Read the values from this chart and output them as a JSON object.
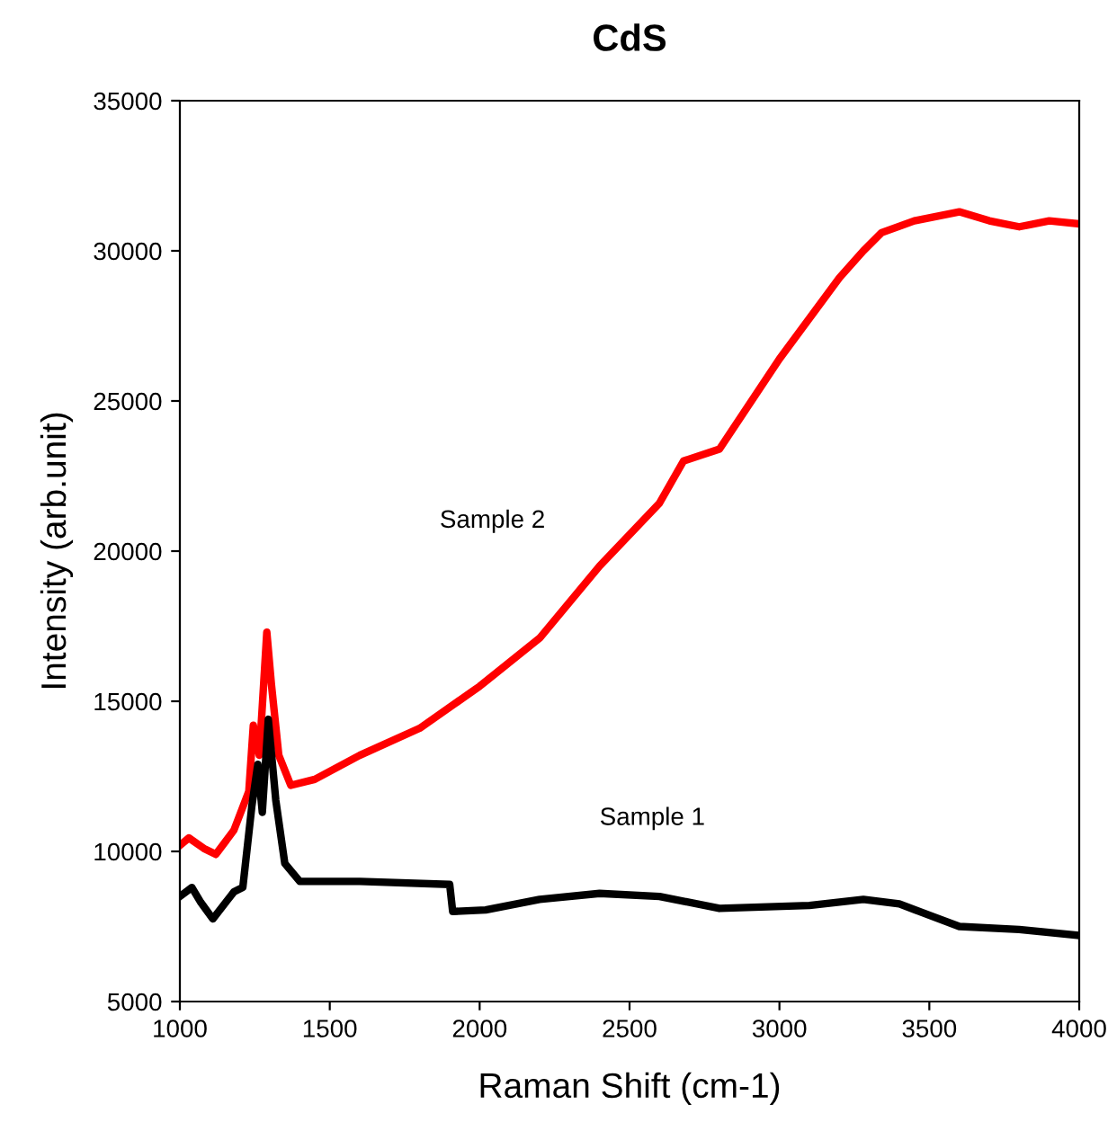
{
  "chart_data": {
    "type": "line",
    "title": "CdS",
    "xlabel": "Raman Shift (cm-1)",
    "ylabel": "Intensity (arb.unit)",
    "xlim": [
      1000,
      4000
    ],
    "xticks": [
      1000,
      1500,
      2000,
      2500,
      3000,
      3500,
      4000
    ],
    "ylim": [
      5000,
      35000
    ],
    "yticks": [
      5000,
      10000,
      15000,
      20000,
      25000,
      30000,
      35000
    ],
    "grid": false,
    "legend": false,
    "marker": "none",
    "line_style": "solid",
    "series": [
      {
        "name": "Sample 2",
        "color": "#ff0000",
        "x": [
          1000,
          1030,
          1080,
          1120,
          1180,
          1230,
          1245,
          1265,
          1290,
          1305,
          1330,
          1370,
          1450,
          1600,
          1800,
          2000,
          2200,
          2400,
          2600,
          2680,
          2800,
          3000,
          3200,
          3280,
          3340,
          3450,
          3600,
          3700,
          3800,
          3900,
          4000
        ],
        "values": [
          10200,
          10450,
          10100,
          9900,
          10700,
          12000,
          14200,
          13200,
          17300,
          15600,
          13200,
          12200,
          12400,
          13200,
          14100,
          15500,
          17100,
          19500,
          21600,
          23000,
          23400,
          26400,
          29100,
          30000,
          30600,
          31000,
          31300,
          31000,
          30800,
          31000,
          30900
        ]
      },
      {
        "name": "Sample 1",
        "color": "#000000",
        "x": [
          1000,
          1040,
          1070,
          1110,
          1180,
          1210,
          1240,
          1260,
          1275,
          1295,
          1320,
          1350,
          1400,
          1600,
          1900,
          1910,
          2020,
          2200,
          2400,
          2600,
          2800,
          3100,
          3280,
          3400,
          3600,
          3800,
          4000
        ],
        "values": [
          8500,
          8800,
          8300,
          7750,
          8650,
          8800,
          11500,
          12900,
          11300,
          14400,
          11700,
          9600,
          9000,
          9000,
          8900,
          8000,
          8050,
          8400,
          8600,
          8500,
          8100,
          8200,
          8400,
          8250,
          7500,
          7400,
          7200
        ]
      }
    ]
  }
}
